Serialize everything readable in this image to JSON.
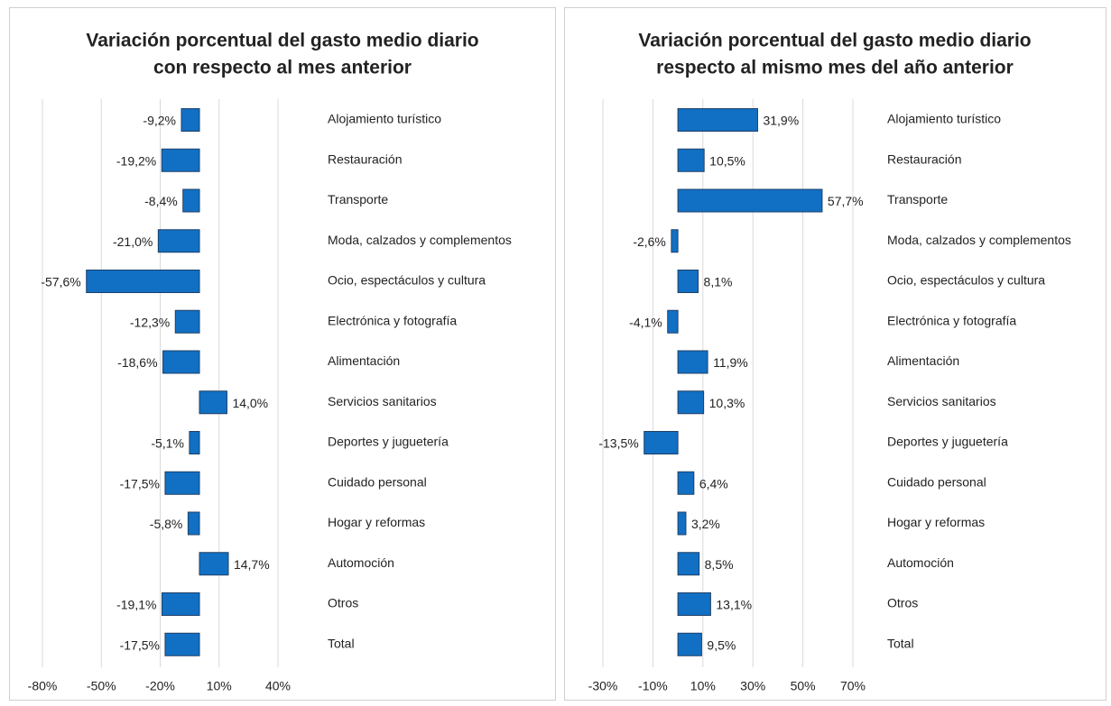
{
  "chart_data": [
    {
      "type": "bar",
      "orientation": "horizontal",
      "title": [
        "Variación porcentual del gasto medio diario",
        "con respecto al mes anterior"
      ],
      "categories": [
        "Alojamiento turístico",
        "Restauración",
        "Transporte",
        "Moda, calzados y complementos",
        "Ocio, espectáculos y cultura",
        "Electrónica y fotografía",
        "Alimentación",
        "Servicios sanitarios",
        "Deportes y juguetería",
        "Cuidado personal",
        "Hogar y reformas",
        "Automoción",
        "Otros",
        "Total"
      ],
      "values": [
        -9.2,
        -19.2,
        -8.4,
        -21.0,
        -57.6,
        -12.3,
        -18.6,
        14.0,
        -5.1,
        -17.5,
        -5.8,
        14.7,
        -19.1,
        -17.5
      ],
      "value_labels": [
        "-9,2%",
        "-19,2%",
        "-8,4%",
        "-21,0%",
        "-57,6%",
        "-12,3%",
        "-18,6%",
        "14,0%",
        "-5,1%",
        "-17,5%",
        "-5,8%",
        "14,7%",
        "-19,1%",
        "-17,5%"
      ],
      "color": "#1170c4",
      "xlim": [
        -80,
        40
      ],
      "xticks": [
        {
          "value": -80,
          "label": "-80%"
        },
        {
          "value": -50,
          "label": "-50%"
        },
        {
          "value": -20,
          "label": "-20%"
        },
        {
          "value": 10,
          "label": "10%"
        },
        {
          "value": 40,
          "label": "40%"
        }
      ],
      "grid": true
    },
    {
      "type": "bar",
      "orientation": "horizontal",
      "title": [
        "Variación porcentual del gasto medio diario",
        "respecto al mismo mes del año anterior"
      ],
      "categories": [
        "Alojamiento turístico",
        "Restauración",
        "Transporte",
        "Moda, calzados y complementos",
        "Ocio, espectáculos y cultura",
        "Electrónica y fotografía",
        "Alimentación",
        "Servicios sanitarios",
        "Deportes y juguetería",
        "Cuidado personal",
        "Hogar y reformas",
        "Automoción",
        "Otros",
        "Total"
      ],
      "values": [
        31.9,
        10.5,
        57.7,
        -2.6,
        8.1,
        -4.1,
        11.9,
        10.3,
        -13.5,
        6.4,
        3.2,
        8.5,
        13.1,
        9.5
      ],
      "value_labels": [
        "31,9%",
        "10,5%",
        "57,7%",
        "-2,6%",
        "8,1%",
        "-4,1%",
        "11,9%",
        "10,3%",
        "-13,5%",
        "6,4%",
        "3,2%",
        "8,5%",
        "13,1%",
        "9,5%"
      ],
      "color": "#1170c4",
      "xlim": [
        -30,
        70
      ],
      "xticks": [
        {
          "value": -30,
          "label": "-30%"
        },
        {
          "value": -10,
          "label": "-10%"
        },
        {
          "value": 10,
          "label": "10%"
        },
        {
          "value": 30,
          "label": "30%"
        },
        {
          "value": 50,
          "label": "50%"
        },
        {
          "value": 70,
          "label": "70%"
        }
      ],
      "grid": true
    }
  ]
}
